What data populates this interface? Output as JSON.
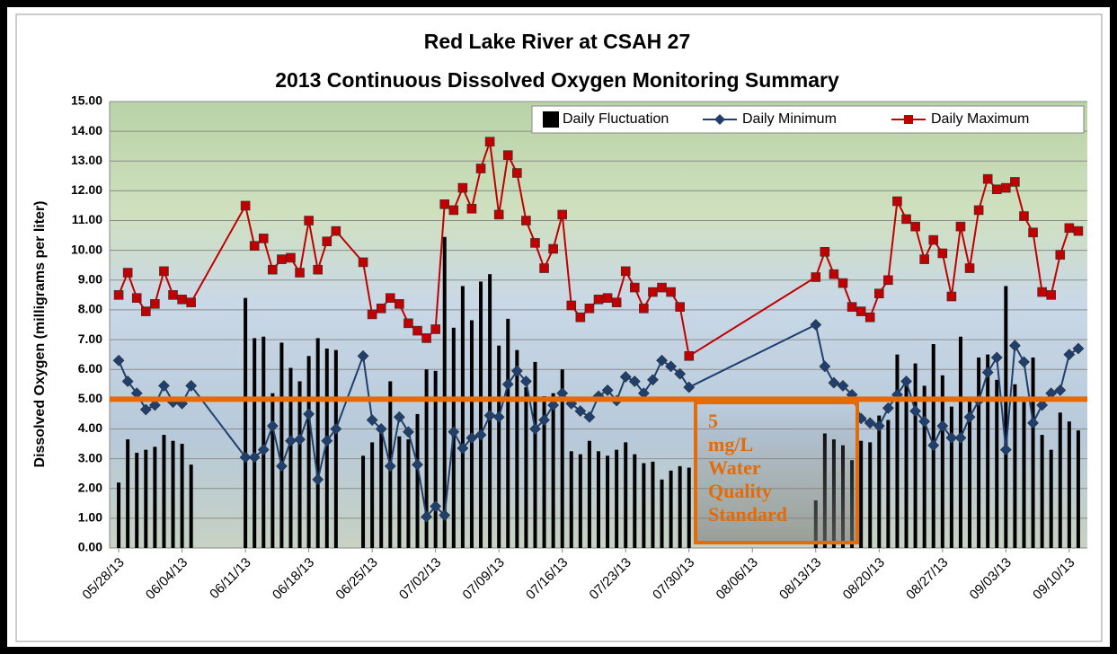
{
  "chart_data": {
    "type": "bar-line",
    "title": "Red Lake River at CSAH 27",
    "subtitle": "2013 Continuous Dissolved Oxygen Monitoring Summary",
    "y_label": "Dissolved Oxygen (milligrams per liter)",
    "annotation": "5 mg/L Water Quality Standard",
    "reference_line": {
      "value": 5,
      "color": "#e36c09"
    },
    "legend": "top-right",
    "grid": true,
    "x": [
      "05/28/13",
      "05/29/13",
      "05/30/13",
      "05/31/13",
      "06/01/13",
      "06/02/13",
      "06/03/13",
      "06/04/13",
      "06/05/13",
      "06/11/13",
      "06/12/13",
      "06/13/13",
      "06/14/13",
      "06/15/13",
      "06/16/13",
      "06/17/13",
      "06/18/13",
      "06/19/13",
      "06/20/13",
      "06/21/13",
      "06/24/13",
      "06/25/13",
      "06/26/13",
      "06/27/13",
      "06/28/13",
      "06/29/13",
      "06/30/13",
      "07/01/13",
      "07/02/13",
      "07/03/13",
      "07/04/13",
      "07/05/13",
      "07/06/13",
      "07/07/13",
      "07/08/13",
      "07/09/13",
      "07/10/13",
      "07/11/13",
      "07/12/13",
      "07/13/13",
      "07/14/13",
      "07/15/13",
      "07/16/13",
      "07/17/13",
      "07/18/13",
      "07/19/13",
      "07/20/13",
      "07/21/13",
      "07/22/13",
      "07/23/13",
      "07/24/13",
      "07/25/13",
      "07/26/13",
      "07/27/13",
      "07/28/13",
      "07/29/13",
      "07/30/13",
      "08/13/13",
      "08/14/13",
      "08/15/13",
      "08/16/13",
      "08/17/13",
      "08/18/13",
      "08/19/13",
      "08/20/13",
      "08/21/13",
      "08/22/13",
      "08/23/13",
      "08/24/13",
      "08/25/13",
      "08/26/13",
      "08/27/13",
      "08/28/13",
      "08/29/13",
      "08/30/13",
      "08/31/13",
      "09/01/13",
      "09/02/13",
      "09/03/13",
      "09/04/13",
      "09/05/13",
      "09/06/13",
      "09/07/13",
      "09/08/13",
      "09/09/13",
      "09/10/13",
      "09/11/13"
    ],
    "series": [
      {
        "name": "Daily Fluctuation",
        "type": "bar",
        "color": "#000000",
        "values": [
          2.2,
          3.65,
          3.2,
          3.3,
          3.4,
          3.8,
          3.6,
          3.5,
          2.8,
          8.4,
          7.05,
          7.1,
          5.2,
          6.9,
          6.05,
          5.6,
          6.45,
          7.05,
          6.7,
          6.65,
          3.1,
          3.55,
          4.05,
          5.6,
          3.75,
          3.65,
          4.5,
          6.0,
          5.95,
          10.45,
          7.4,
          8.8,
          7.65,
          8.95,
          9.2,
          6.8,
          7.7,
          6.65,
          5.4,
          6.25,
          5.1,
          5.2,
          6.0,
          3.25,
          3.15,
          3.6,
          3.25,
          3.1,
          3.3,
          3.55,
          3.15,
          2.85,
          2.9,
          2.3,
          2.6,
          2.75,
          2.7,
          1.6,
          3.85,
          3.65,
          3.45,
          2.95,
          3.6,
          3.55,
          4.45,
          4.3,
          6.5,
          5.45,
          6.2,
          5.45,
          6.85,
          5.8,
          4.75,
          7.1,
          5.0,
          6.4,
          6.5,
          5.65,
          8.8,
          5.5,
          4.9,
          6.4,
          3.8,
          3.3,
          4.55,
          4.25,
          3.95
        ]
      },
      {
        "name": "Daily Minimum",
        "type": "line",
        "marker": "diamond",
        "color": "#1f3f6e",
        "values": [
          6.3,
          5.6,
          5.2,
          4.65,
          4.8,
          5.45,
          4.9,
          4.85,
          5.45,
          3.05,
          3.05,
          3.3,
          4.1,
          2.75,
          3.6,
          3.65,
          4.5,
          2.3,
          3.6,
          4.0,
          6.45,
          4.3,
          4.0,
          2.75,
          4.4,
          3.9,
          2.8,
          1.05,
          1.4,
          1.1,
          3.9,
          3.35,
          3.7,
          3.8,
          4.45,
          4.4,
          5.5,
          5.95,
          5.6,
          4.0,
          4.3,
          4.8,
          5.2,
          4.85,
          4.6,
          4.4,
          5.1,
          5.3,
          4.95,
          5.75,
          5.6,
          5.2,
          5.65,
          6.3,
          6.1,
          5.85,
          5.4,
          7.5,
          6.1,
          5.55,
          5.45,
          5.15,
          4.35,
          4.2,
          4.1,
          4.7,
          5.15,
          5.6,
          4.6,
          4.25,
          3.45,
          4.1,
          3.7,
          3.7,
          4.4,
          4.95,
          5.9,
          6.4,
          3.3,
          6.8,
          6.25,
          4.2,
          4.8,
          5.2,
          5.3,
          6.5,
          6.7
        ]
      },
      {
        "name": "Daily Maximum",
        "type": "line",
        "marker": "square",
        "color": "#c00000",
        "values": [
          8.5,
          9.25,
          8.4,
          7.95,
          8.2,
          9.3,
          8.5,
          8.35,
          8.25,
          11.5,
          10.15,
          10.4,
          9.35,
          9.7,
          9.75,
          9.25,
          11.0,
          9.35,
          10.3,
          10.65,
          9.6,
          7.85,
          8.05,
          8.4,
          8.2,
          7.55,
          7.3,
          7.05,
          7.35,
          11.55,
          11.35,
          12.1,
          11.4,
          12.75,
          13.65,
          11.2,
          13.2,
          12.6,
          11.0,
          10.25,
          9.4,
          10.05,
          11.2,
          8.15,
          7.75,
          8.05,
          8.35,
          8.4,
          8.25,
          9.3,
          8.75,
          8.05,
          8.6,
          8.75,
          8.6,
          8.1,
          6.45,
          9.1,
          9.95,
          9.2,
          8.9,
          8.1,
          7.95,
          7.75,
          8.55,
          9.0,
          11.65,
          11.05,
          10.8,
          9.7,
          10.35,
          9.9,
          8.45,
          10.8,
          9.4,
          11.35,
          12.4,
          12.05,
          12.1,
          12.3,
          11.15,
          10.6,
          8.6,
          8.5,
          9.85,
          10.75,
          10.65
        ]
      }
    ],
    "xlim": [
      "05/27/13",
      "09/12/13"
    ],
    "xticks": [
      "05/28/13",
      "06/04/13",
      "06/11/13",
      "06/18/13",
      "06/25/13",
      "07/02/13",
      "07/09/13",
      "07/16/13",
      "07/23/13",
      "07/30/13",
      "08/06/13",
      "08/13/13",
      "08/20/13",
      "08/27/13",
      "09/03/13",
      "09/10/13"
    ],
    "ylim": [
      0,
      15
    ],
    "yticks": [
      {
        "value": 0,
        "label": "0.00"
      },
      {
        "value": 1,
        "label": "1.00"
      },
      {
        "value": 2,
        "label": "2.00"
      },
      {
        "value": 3,
        "label": "3.00"
      },
      {
        "value": 4,
        "label": "4.00"
      },
      {
        "value": 5,
        "label": "5.00"
      },
      {
        "value": 6,
        "label": "6.00"
      },
      {
        "value": 7,
        "label": "7.00"
      },
      {
        "value": 8,
        "label": "8.00"
      },
      {
        "value": 9,
        "label": "9.00"
      },
      {
        "value": 10,
        "label": "10.00"
      },
      {
        "value": 11,
        "label": "11.00"
      },
      {
        "value": 12,
        "label": "12.00"
      },
      {
        "value": 13,
        "label": "13.00"
      },
      {
        "value": 14,
        "label": "14.00"
      },
      {
        "value": 15,
        "label": "15.00"
      }
    ]
  }
}
